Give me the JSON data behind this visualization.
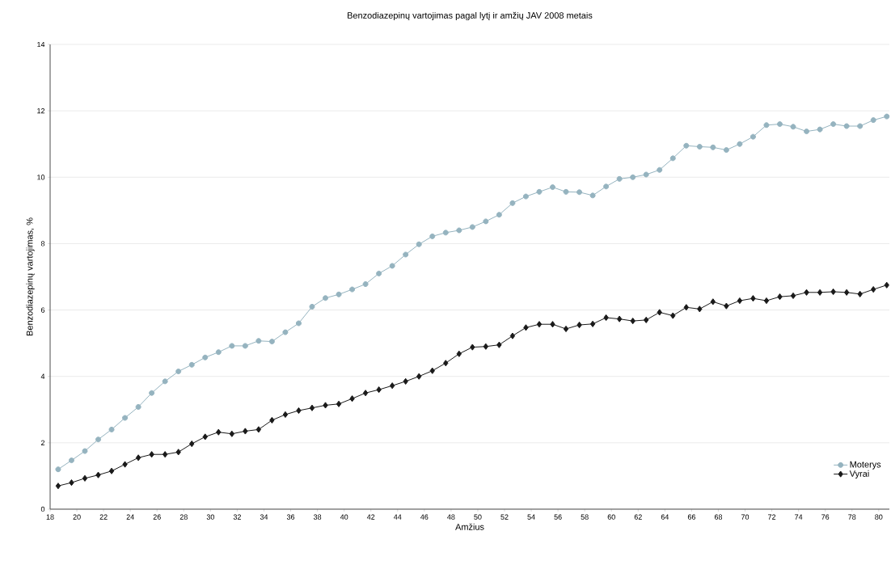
{
  "chart_data": {
    "type": "line",
    "title": "Benzodiazepinų vartojimas pagal lytį ir amžių JAV 2008 metais",
    "xlabel": "Amžius",
    "ylabel": "Benzodiazepinų vartojimas, %",
    "x": [
      18.6,
      19.6,
      20.6,
      21.6,
      22.6,
      23.6,
      24.6,
      25.6,
      26.6,
      27.6,
      28.6,
      29.6,
      30.6,
      31.6,
      32.6,
      33.6,
      34.6,
      35.6,
      36.6,
      37.6,
      38.6,
      39.6,
      40.6,
      41.6,
      42.6,
      43.6,
      44.6,
      45.6,
      46.6,
      47.6,
      48.6,
      49.6,
      50.6,
      51.6,
      52.6,
      53.6,
      54.6,
      55.6,
      56.6,
      57.6,
      58.6,
      59.6,
      60.6,
      61.6,
      62.6,
      63.6,
      64.6,
      65.6,
      66.6,
      67.6,
      68.6,
      69.6,
      70.6,
      71.6,
      72.6,
      73.6,
      74.6,
      75.6,
      76.6,
      77.6,
      78.6,
      79.6,
      80.6
    ],
    "series": [
      {
        "name": "Moterys",
        "color": "#95b3bf",
        "marker": "circle",
        "values": [
          1.2,
          1.47,
          1.75,
          2.1,
          2.4,
          2.75,
          3.08,
          3.5,
          3.85,
          4.15,
          4.35,
          4.57,
          4.73,
          4.92,
          4.92,
          5.07,
          5.05,
          5.33,
          5.6,
          6.1,
          6.36,
          6.47,
          6.62,
          6.78,
          7.1,
          7.33,
          7.67,
          7.98,
          8.22,
          8.33,
          8.4,
          8.5,
          8.67,
          8.87,
          9.22,
          9.42,
          9.56,
          9.7,
          9.56,
          9.55,
          9.45,
          9.72,
          9.95,
          10.0,
          10.08,
          10.22,
          10.57,
          10.95,
          10.92,
          10.9,
          10.82,
          11.0,
          11.22,
          11.57,
          11.6,
          11.52,
          11.38,
          11.44,
          11.6,
          11.54,
          11.54,
          11.72,
          11.83
        ]
      },
      {
        "name": "Vyrai",
        "color": "#1a1a1a",
        "marker": "diamond",
        "values": [
          0.7,
          0.8,
          0.93,
          1.03,
          1.15,
          1.35,
          1.55,
          1.65,
          1.65,
          1.72,
          1.97,
          2.18,
          2.32,
          2.27,
          2.35,
          2.4,
          2.68,
          2.85,
          2.97,
          3.05,
          3.13,
          3.17,
          3.33,
          3.5,
          3.6,
          3.72,
          3.85,
          4.0,
          4.17,
          4.4,
          4.68,
          4.88,
          4.9,
          4.95,
          5.22,
          5.47,
          5.57,
          5.57,
          5.43,
          5.55,
          5.58,
          5.77,
          5.73,
          5.67,
          5.7,
          5.93,
          5.83,
          6.08,
          6.03,
          6.25,
          6.12,
          6.28,
          6.35,
          6.28,
          6.4,
          6.43,
          6.53,
          6.53,
          6.55,
          6.53,
          6.48,
          6.62,
          6.75
        ]
      }
    ],
    "xlim": [
      18,
      80.8
    ],
    "xticks": [
      18,
      20,
      22,
      24,
      26,
      28,
      30,
      32,
      34,
      36,
      38,
      40,
      42,
      44,
      46,
      48,
      50,
      52,
      54,
      56,
      58,
      60,
      62,
      64,
      66,
      68,
      70,
      72,
      74,
      76,
      78,
      80
    ],
    "ylim": [
      0,
      14
    ],
    "yticks": [
      0,
      2,
      4,
      6,
      8,
      10,
      12,
      14
    ],
    "grid": "y",
    "legend": "bottom right",
    "line_style": "solid"
  }
}
